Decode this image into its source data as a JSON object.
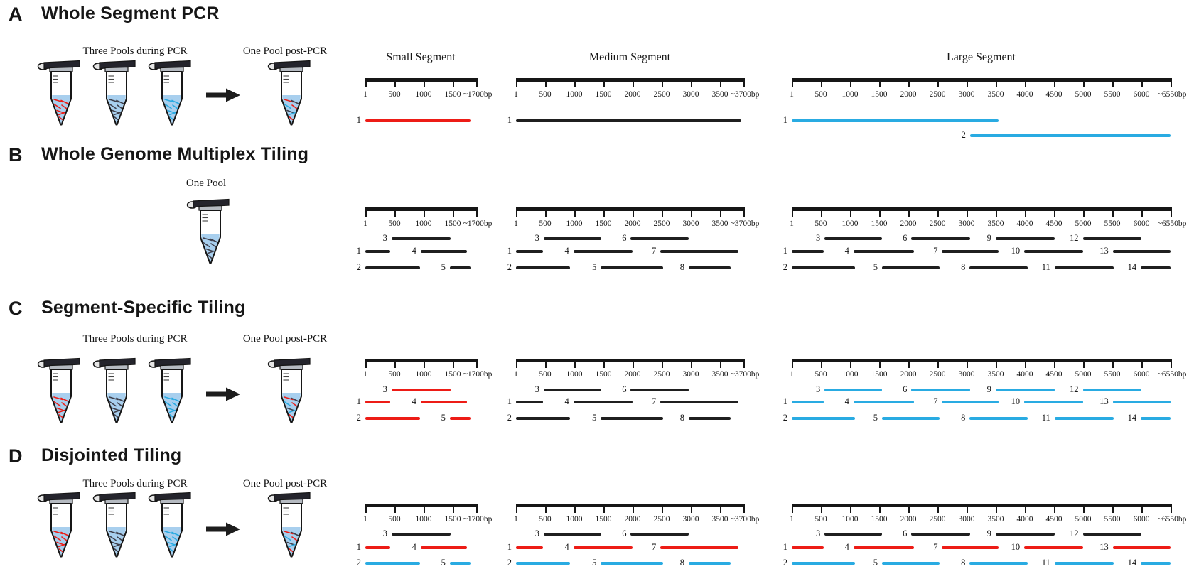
{
  "figure": {
    "panels": [
      {
        "letter": "A",
        "title": "Whole Segment PCR",
        "scheme": "panel_a",
        "pool_groups": [
          {
            "label": "Three Pools during PCR",
            "tubes": [
              [
                "red"
              ],
              [
                "black"
              ],
              [
                "cyan"
              ]
            ]
          },
          {
            "label": "One Pool post-PCR",
            "tubes": [
              [
                "red",
                "black",
                "cyan"
              ]
            ]
          }
        ]
      },
      {
        "letter": "B",
        "title": "Whole Genome Multiplex Tiling",
        "scheme": "all_black",
        "pool_groups": [
          {
            "label": "One Pool",
            "tubes": [
              [
                "black"
              ]
            ]
          }
        ]
      },
      {
        "letter": "C",
        "title": "Segment-Specific Tiling",
        "scheme": "by_segment",
        "pool_groups": [
          {
            "label": "Three Pools during PCR",
            "tubes": [
              [
                "red"
              ],
              [
                "black"
              ],
              [
                "cyan"
              ]
            ]
          },
          {
            "label": "One Pool post-PCR",
            "tubes": [
              [
                "red",
                "black",
                "cyan"
              ]
            ]
          }
        ]
      },
      {
        "letter": "D",
        "title": "Disjointed Tiling",
        "scheme": "by_row",
        "pool_groups": [
          {
            "label": "Three Pools during PCR",
            "tubes": [
              [
                "red"
              ],
              [
                "black"
              ],
              [
                "cyan"
              ]
            ]
          },
          {
            "label": "One Pool post-PCR",
            "tubes": [
              [
                "red",
                "black",
                "cyan"
              ]
            ]
          }
        ]
      }
    ],
    "segments": [
      {
        "id": "small",
        "title": "Small Segment",
        "max_bp": 1700,
        "ticks": [
          1,
          500,
          1000,
          1500
        ],
        "end_label": "~1700bp"
      },
      {
        "id": "medium",
        "title": "Medium Segment",
        "max_bp": 3700,
        "ticks": [
          1,
          500,
          1000,
          1500,
          2000,
          2500,
          3000,
          3500
        ],
        "end_label": "~3700bp"
      },
      {
        "id": "large",
        "title": "Large Segment",
        "max_bp": 6550,
        "ticks": [
          1,
          500,
          1000,
          1500,
          2000,
          2500,
          3000,
          3500,
          4000,
          4500,
          5000,
          5500,
          6000
        ],
        "end_label": "~6550bp"
      }
    ]
  },
  "panel_a_amplicons": {
    "small": [
      {
        "n": 1,
        "row": 0,
        "start": 1,
        "end": 1650,
        "color": "red"
      }
    ],
    "medium": [
      {
        "n": 1,
        "row": 0,
        "start": 1,
        "end": 3680,
        "color": "black"
      }
    ],
    "large": [
      {
        "n": 1,
        "row": 0,
        "start": 1,
        "end": 3550,
        "color": "cyan"
      },
      {
        "n": 2,
        "row": 1,
        "start": 3060,
        "end": 6550,
        "color": "cyan"
      }
    ]
  },
  "tiling": {
    "small": [
      {
        "n": 1,
        "row": 1,
        "start": 1,
        "end": 430
      },
      {
        "n": 2,
        "row": 2,
        "start": 1,
        "end": 940
      },
      {
        "n": 3,
        "row": 0,
        "start": 450,
        "end": 1460
      },
      {
        "n": 4,
        "row": 1,
        "start": 950,
        "end": 1620
      },
      {
        "n": 5,
        "row": 2,
        "start": 1450,
        "end": 1650
      }
    ],
    "medium": [
      {
        "n": 1,
        "row": 1,
        "start": 1,
        "end": 470
      },
      {
        "n": 2,
        "row": 2,
        "start": 1,
        "end": 925
      },
      {
        "n": 3,
        "row": 0,
        "start": 475,
        "end": 1470
      },
      {
        "n": 4,
        "row": 1,
        "start": 985,
        "end": 2000
      },
      {
        "n": 5,
        "row": 2,
        "start": 1455,
        "end": 2520
      },
      {
        "n": 6,
        "row": 0,
        "start": 1970,
        "end": 2970
      },
      {
        "n": 7,
        "row": 1,
        "start": 2480,
        "end": 3660
      },
      {
        "n": 8,
        "row": 2,
        "start": 2965,
        "end": 3590
      }
    ],
    "large": [
      {
        "n": 1,
        "row": 1,
        "start": 1,
        "end": 550
      },
      {
        "n": 2,
        "row": 2,
        "start": 1,
        "end": 1085
      },
      {
        "n": 3,
        "row": 0,
        "start": 565,
        "end": 1550
      },
      {
        "n": 4,
        "row": 1,
        "start": 1060,
        "end": 2100
      },
      {
        "n": 5,
        "row": 2,
        "start": 1550,
        "end": 2540
      },
      {
        "n": 6,
        "row": 0,
        "start": 2055,
        "end": 3065
      },
      {
        "n": 7,
        "row": 1,
        "start": 2580,
        "end": 3550
      },
      {
        "n": 8,
        "row": 2,
        "start": 3055,
        "end": 4045
      },
      {
        "n": 9,
        "row": 0,
        "start": 3500,
        "end": 4510
      },
      {
        "n": 10,
        "row": 1,
        "start": 3990,
        "end": 5005
      },
      {
        "n": 11,
        "row": 2,
        "start": 4510,
        "end": 5520
      },
      {
        "n": 12,
        "row": 0,
        "start": 4995,
        "end": 6005
      },
      {
        "n": 13,
        "row": 1,
        "start": 5510,
        "end": 6550
      },
      {
        "n": 14,
        "row": 2,
        "start": 5990,
        "end": 6550
      }
    ]
  },
  "colors": {
    "red": "#ed1c16",
    "black": "#1f1f1f",
    "cyan": "#29abe2",
    "dark_strand": "#3e3e4a",
    "liquid": "#a8cfee",
    "ink": "#161616"
  }
}
